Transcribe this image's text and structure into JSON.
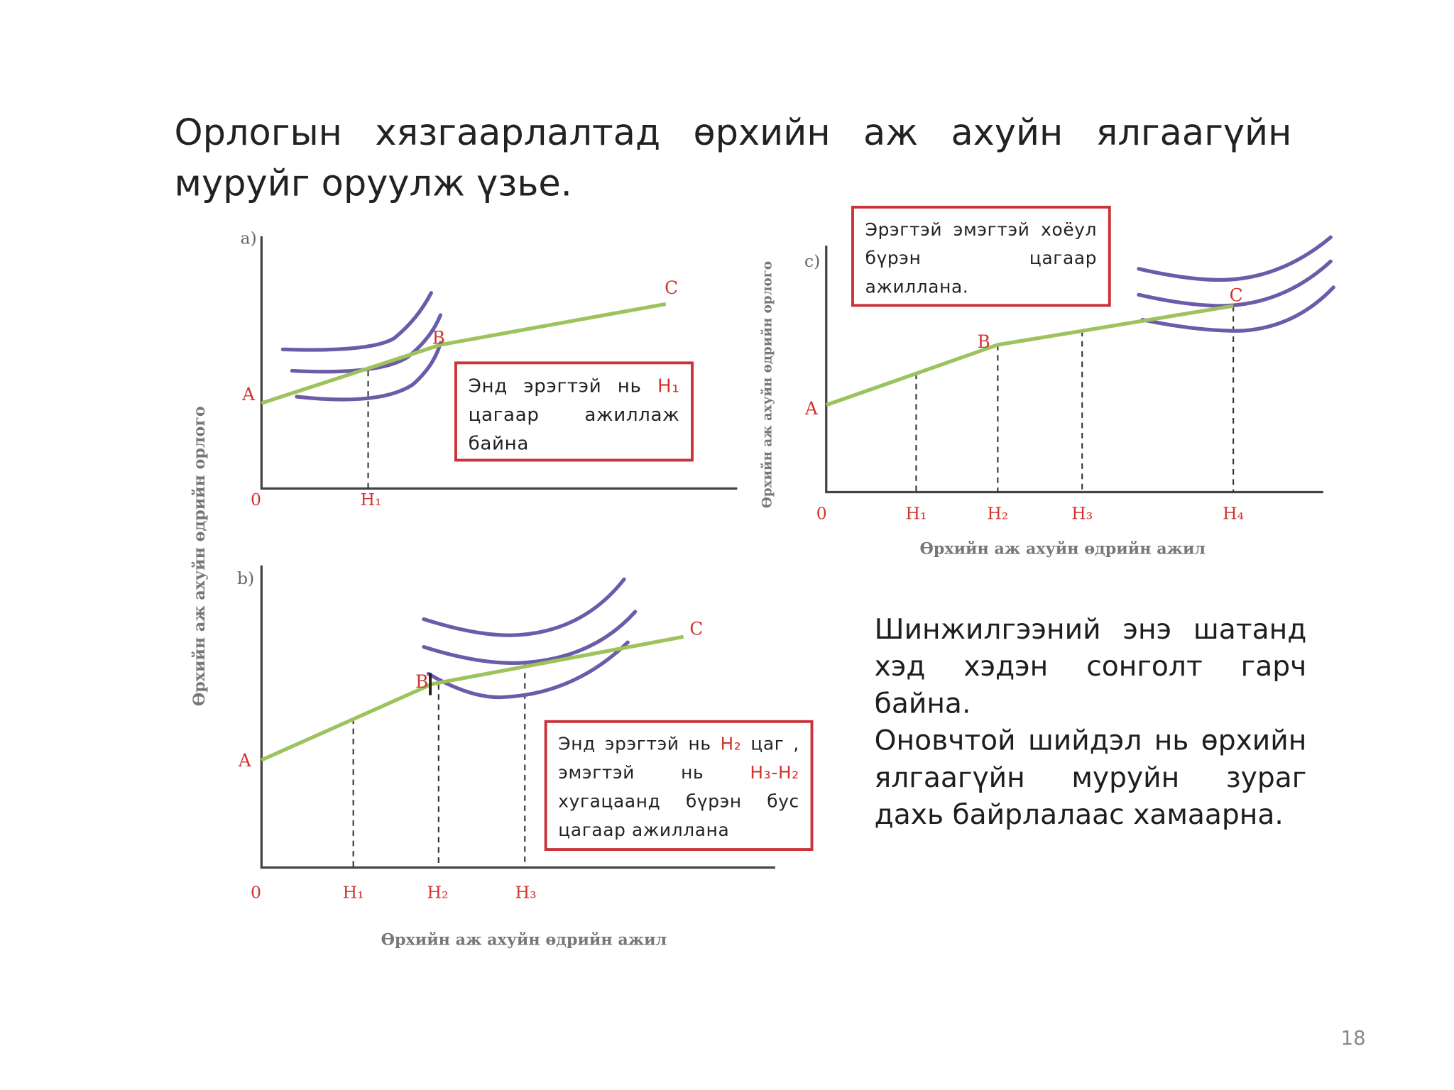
{
  "title": "Орлогын хязгаарлалтад өрхийн аж ахуйн ялгаагүйн муруйг оруулж үзье.",
  "y_label": "Өрхийн аж ахуйн өдрийн орлого",
  "panel_a": {
    "label": "a)",
    "points": [
      "A",
      "B",
      "C"
    ],
    "origin": "0",
    "ticks": [
      "H₁"
    ],
    "callout": [
      "Энд эрэгтэй нь ",
      "H₁",
      " цагаар ажиллаж байна"
    ]
  },
  "panel_b": {
    "label": "b)",
    "points": [
      "A",
      "B",
      "C"
    ],
    "origin": "0",
    "ticks": [
      "H₁",
      "H₂",
      "H₃"
    ],
    "x_label": "Өрхийн аж ахуйн өдрийн ажил",
    "callout": [
      "Энд эрэгтэй нь ",
      "H₂",
      " цаг , эмэгтэй нь ",
      "H₃-H₂",
      " хугацаанд бүрэн бус цагаар ажиллана"
    ]
  },
  "panel_c": {
    "label": "c)",
    "points": [
      "A",
      "B",
      "C"
    ],
    "origin": "0",
    "ticks": [
      "H₁",
      "H₂",
      "H₃",
      "H₄"
    ],
    "y_label": "Өрхийн аж ахуйн өдрийн орлого",
    "x_label": "Өрхийн аж ахуйн өдрийн ажил",
    "callout": "Эрэгтэй эмэгтэй хоёул бүрэн цагаар ажиллана."
  },
  "body": [
    "Шинжилгээний энэ шатанд хэд хэдэн сонголт гарч байна.",
    "Оновчтой шийдэл нь өрхийн ялгаагүйн муруйн зураг дахь байрлалаас хамаарна."
  ],
  "page_number": "18"
}
